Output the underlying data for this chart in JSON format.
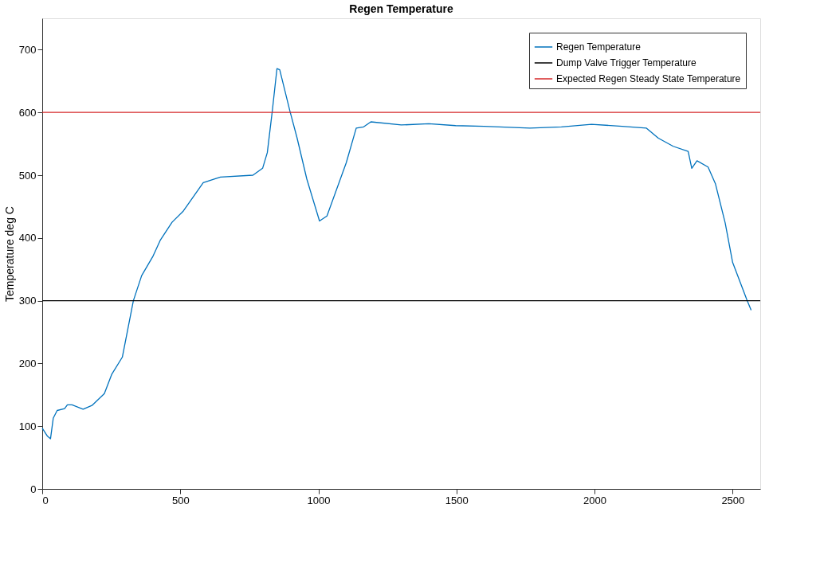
{
  "chart_data": {
    "type": "line",
    "title": "Regen Temperature",
    "ylabel": "Temperature deg C",
    "xlim": [
      0,
      2600
    ],
    "ylim": [
      0,
      750
    ],
    "xticks": [
      0,
      500,
      1000,
      1500,
      2000,
      2500
    ],
    "yticks": [
      0,
      100,
      200,
      300,
      400,
      500,
      600,
      700
    ],
    "grid": false,
    "legend": "top right",
    "marker": "none",
    "line_style": "solid",
    "series": [
      {
        "name": "Regen Temperature",
        "color": "#0072bd",
        "x": [
          0,
          19,
          30,
          40,
          54,
          81,
          91,
          108,
          148,
          180,
          225,
          252,
          290,
          330,
          360,
          400,
          427,
          470,
          511,
          583,
          645,
          763,
          798,
          815,
          833,
          850,
          860,
          897,
          923,
          958,
          1004,
          1031,
          1101,
          1137,
          1164,
          1190,
          1300,
          1400,
          1497,
          1600,
          1766,
          1880,
          1989,
          2100,
          2188,
          2231,
          2285,
          2339,
          2352,
          2371,
          2411,
          2438,
          2473,
          2500,
          2551,
          2567
        ],
        "values": [
          97,
          84,
          80,
          113,
          125,
          128,
          134,
          134,
          127,
          133,
          152,
          183,
          210,
          300,
          340,
          370,
          396,
          425,
          443,
          488,
          497,
          500,
          511,
          536,
          602,
          670,
          668,
          602,
          559,
          494,
          427,
          435,
          520,
          575,
          577,
          585,
          580,
          582,
          579,
          578,
          575,
          577,
          581,
          578,
          575,
          559,
          546,
          538,
          511,
          523,
          513,
          486,
          424,
          361,
          302,
          285
        ]
      }
    ],
    "ref_lines": [
      {
        "axis": "y",
        "value": 300,
        "label": "Dump Valve Trigger Temperature",
        "color": "#000000"
      },
      {
        "axis": "y",
        "value": 600,
        "label": "Expected Regen Steady State Temperature",
        "color": "#d62728"
      }
    ]
  }
}
